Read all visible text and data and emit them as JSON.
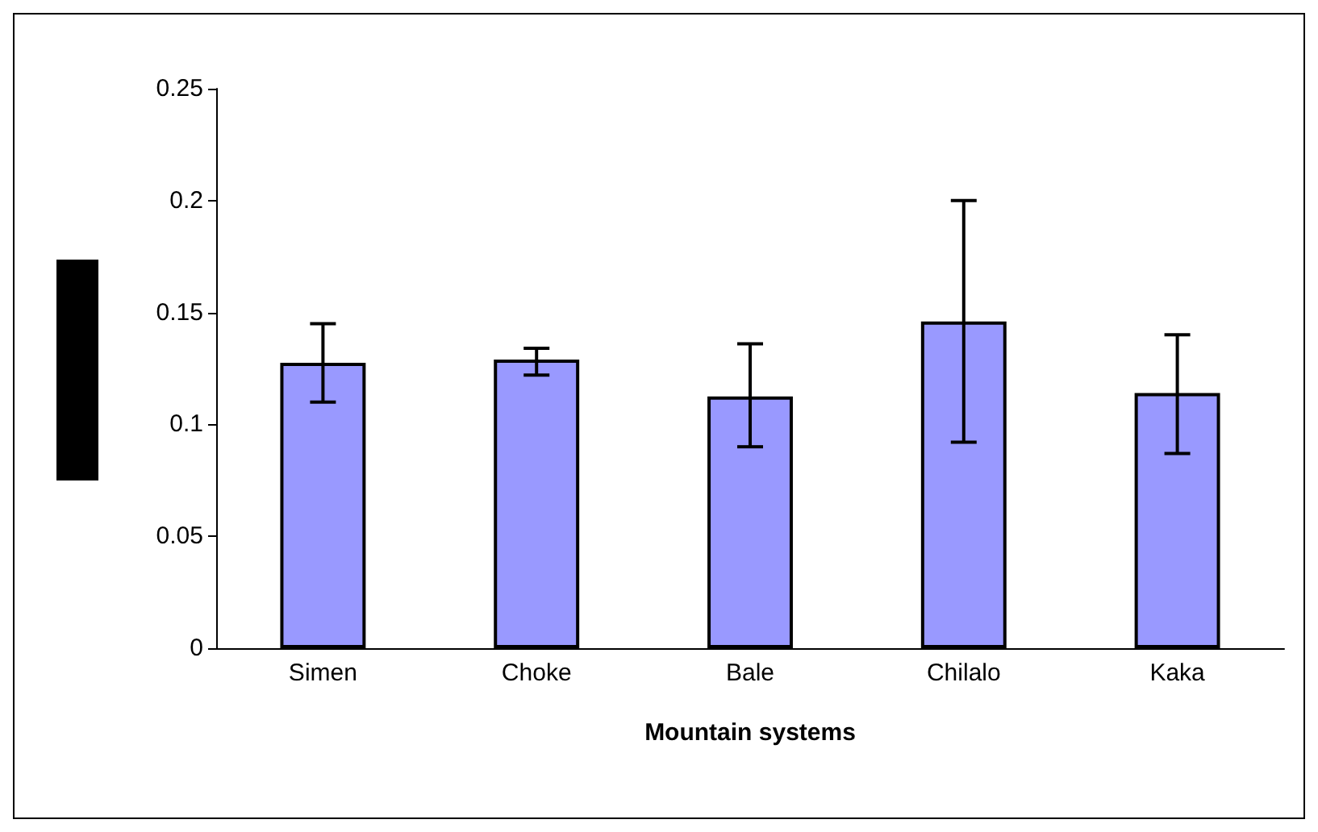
{
  "chart_data": {
    "type": "bar",
    "xlabel": "Mountain systems",
    "categories": [
      "Simen",
      "Choke",
      "Bale",
      "Chilalo",
      "Kaka"
    ],
    "values": [
      0.1275,
      0.129,
      0.1125,
      0.146,
      0.114
    ],
    "errors": [
      [
        0.11,
        0.145
      ],
      [
        0.122,
        0.134
      ],
      [
        0.09,
        0.136
      ],
      [
        0.092,
        0.2
      ],
      [
        0.087,
        0.14
      ]
    ],
    "color": "#9999ff",
    "ylim": [
      0,
      0.25
    ],
    "yticks": [
      0,
      0.05,
      0.1,
      0.15,
      0.2,
      0.25
    ],
    "grid": false
  }
}
